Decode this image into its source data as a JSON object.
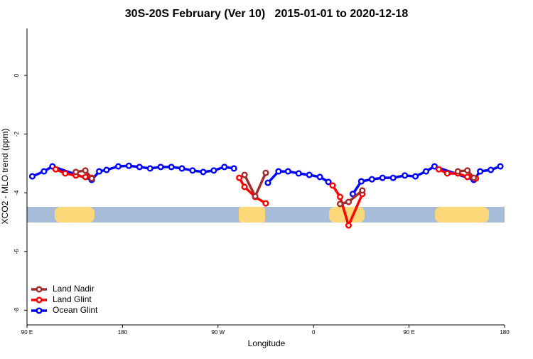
{
  "chart_data": {
    "type": "line",
    "title": "30S-20S February (Ver 10)   2015-01-01 to 2020-12-18",
    "xlabel": "Longitude",
    "ylabel": "XCO2 - MLO trend (ppm)",
    "xlim": [
      90,
      540
    ],
    "xticks": [
      {
        "value": 90,
        "label": "90 E"
      },
      180,
      {
        "value": 270,
        "label": "90 W"
      },
      {
        "value": 360,
        "label": "0"
      },
      {
        "value": 450,
        "label": "90 E"
      },
      {
        "value": 540,
        "label": "180"
      }
    ],
    "ylim": [
      -8.5,
      1.6
    ],
    "yticks": [
      0,
      -2,
      -4,
      -6,
      -8
    ],
    "legend": "bottom-left",
    "series": [
      {
        "name": "Land Nadir",
        "color": "#a52a2a",
        "x": [
          136,
          145,
          151,
          null,
          295,
          305,
          315,
          null,
          385,
          393,
          406,
          null,
          496,
          505,
          511
        ],
        "values": [
          -3.29,
          -3.24,
          -3.51,
          null,
          -3.39,
          -4.12,
          -3.32,
          null,
          -4.38,
          -4.31,
          -3.92,
          null,
          -3.27,
          -3.24,
          -3.49
        ]
      },
      {
        "name": "Land Glint",
        "color": "#ff0000",
        "x": [
          117,
          126,
          136,
          145,
          151,
          null,
          290,
          295,
          305,
          315,
          null,
          378,
          385,
          393,
          406,
          null,
          478,
          486,
          496,
          505,
          513
        ],
        "values": [
          -3.2,
          -3.34,
          -3.41,
          -3.46,
          -3.49,
          null,
          -3.49,
          -3.8,
          -4.14,
          -4.36,
          null,
          -3.75,
          -4.14,
          -5.11,
          -4.04,
          null,
          -3.2,
          -3.34,
          -3.34,
          -3.46,
          -3.51
        ]
      },
      {
        "name": "Ocean Glint",
        "color": "#0000ff",
        "x": [
          95,
          106,
          114,
          151,
          158,
          165,
          176,
          186,
          196,
          206,
          216,
          226,
          236,
          246,
          256,
          266,
          276,
          285,
          null,
          317,
          327,
          336,
          346,
          356,
          366,
          374,
          null,
          397,
          405,
          415,
          425,
          435,
          446,
          456,
          466,
          474,
          511,
          517,
          527,
          536
        ],
        "values": [
          -3.44,
          -3.27,
          -3.1,
          -3.56,
          -3.27,
          -3.22,
          -3.1,
          -3.08,
          -3.12,
          -3.17,
          -3.12,
          -3.12,
          -3.17,
          -3.24,
          -3.29,
          -3.24,
          -3.12,
          -3.17,
          null,
          -3.66,
          -3.27,
          -3.27,
          -3.34,
          -3.39,
          -3.46,
          -3.63,
          null,
          -4.04,
          -3.61,
          -3.54,
          -3.49,
          -3.49,
          -3.41,
          -3.44,
          -3.27,
          -3.1,
          -3.56,
          -3.27,
          -3.22,
          -3.1
        ]
      }
    ]
  }
}
